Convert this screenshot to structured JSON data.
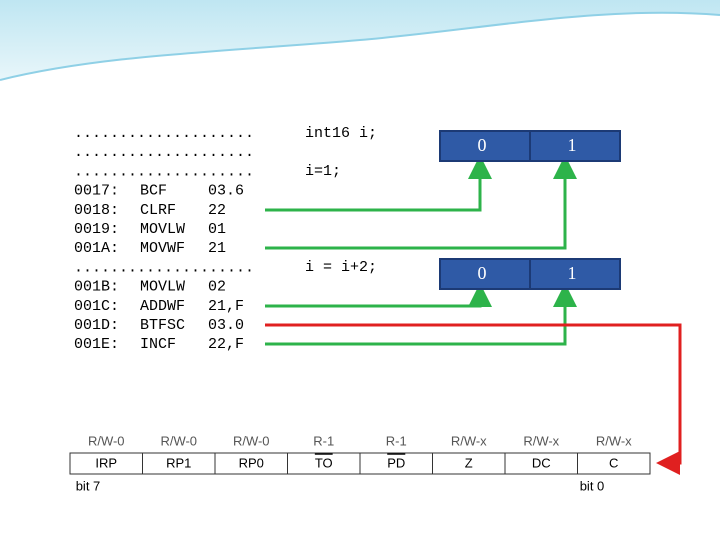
{
  "code": {
    "lines": [
      [
        "...................."
      ],
      [
        "...................."
      ],
      [
        "...................."
      ],
      [
        "0017:",
        "BCF",
        "03.6"
      ],
      [
        "0018:",
        "CLRF",
        "22"
      ],
      [
        "0019:",
        "MOVLW",
        "01"
      ],
      [
        "001A:",
        "MOVWF",
        "21"
      ],
      [
        "...................."
      ],
      [
        "001B:",
        "MOVLW",
        "02"
      ],
      [
        "001C:",
        "ADDWF",
        "21,F"
      ],
      [
        "001D:",
        "BTFSC",
        "03.0"
      ],
      [
        "001E:",
        "INCF",
        "22,F"
      ]
    ]
  },
  "source": {
    "lines": [
      "int16 i;",
      "i=1;",
      "i = i+2;"
    ]
  },
  "boxes": [
    [
      "0",
      "1"
    ],
    [
      "0",
      "1"
    ]
  ],
  "register": {
    "access": [
      "R/W-0",
      "R/W-0",
      "R/W-0",
      "R-1",
      "R-1",
      "R/W-x",
      "R/W-x",
      "R/W-x"
    ],
    "bits": [
      "IRP",
      "RP1",
      "RP0",
      "TO",
      "PD",
      "Z",
      "DC",
      "C"
    ],
    "bit_high": "bit 7",
    "bit_low": "bit 0"
  }
}
